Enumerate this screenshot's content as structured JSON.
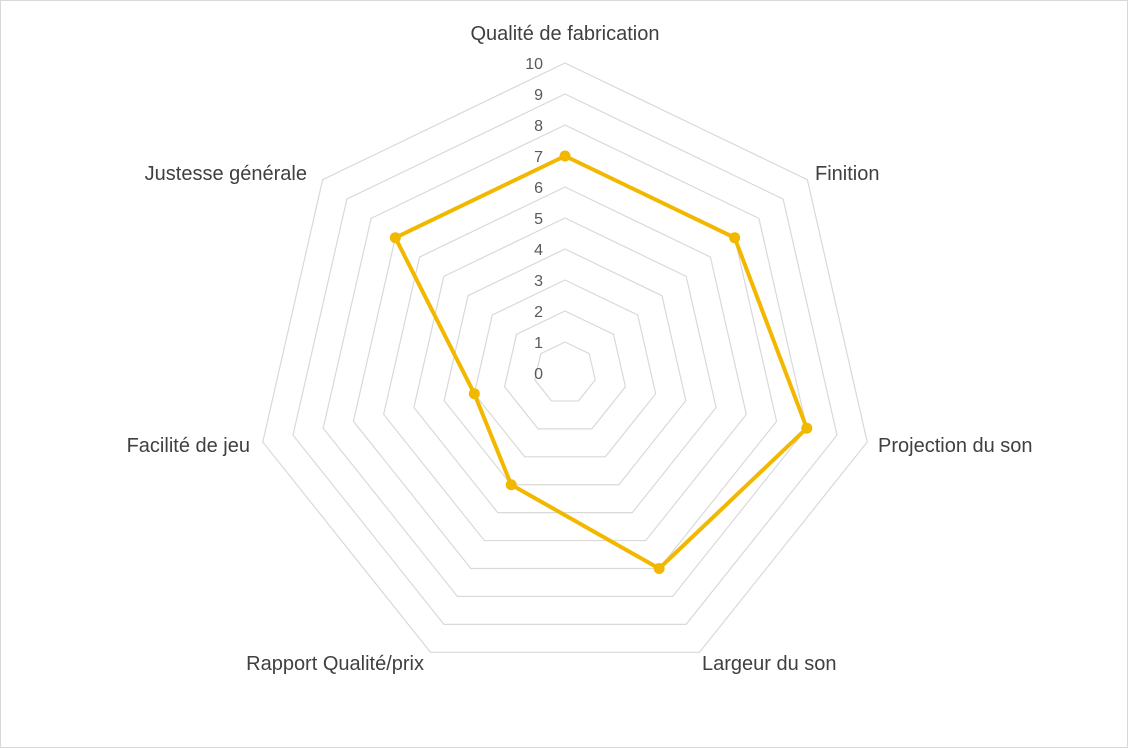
{
  "chart_data": {
    "type": "radar",
    "title": "",
    "categories": [
      "Qualité de fabrication",
      "Finition",
      "Projection du son",
      "Largeur du son",
      "Rapport Qualité/prix",
      "Facilité de jeu",
      "Justesse générale"
    ],
    "series": [
      {
        "values": [
          7,
          7,
          8,
          7,
          4,
          3,
          7
        ]
      }
    ],
    "rlim": [
      0,
      10
    ],
    "ticks": [
      "0",
      "1",
      "2",
      "3",
      "4",
      "5",
      "6",
      "7",
      "8",
      "9",
      "10"
    ],
    "grid": true,
    "legend": "none"
  },
  "colors": {
    "series": "#F2B800",
    "grid": "#D9D9D9"
  }
}
